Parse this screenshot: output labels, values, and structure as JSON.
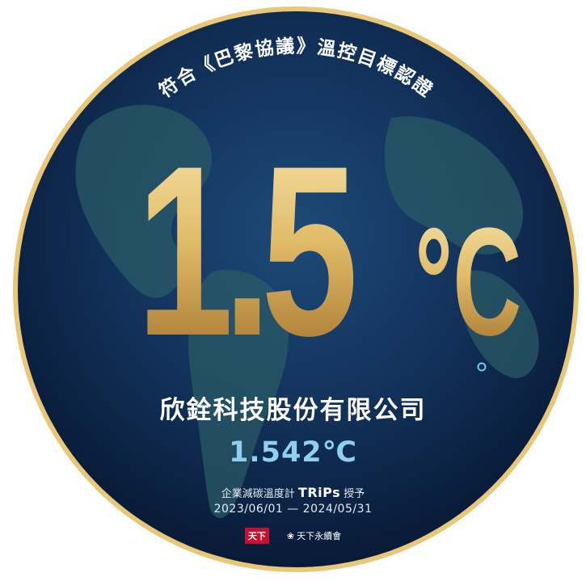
{
  "badge": {
    "arc_title": "符合《巴黎協議》溫控目標認證",
    "big_number": "1.5",
    "big_unit": "°C",
    "company": "欣銓科技股份有限公司",
    "company_temperature": "1.542℃",
    "grant_prefix": "企業減碳溫度計",
    "grant_brand": "TRiPs",
    "grant_suffix": "授予",
    "period": "2023/06/01 — 2024/05/31",
    "logo_left": "天下",
    "logo_right": "天下永續會"
  },
  "colors": {
    "globe_dark": "#0b2145",
    "globe_mid": "#14345e",
    "land": "#1f4b5a",
    "gold_light": "#f5e1a0",
    "gold_dark": "#a8772a",
    "accent_blue": "#8fd0f0",
    "rim": "#e0b860"
  }
}
